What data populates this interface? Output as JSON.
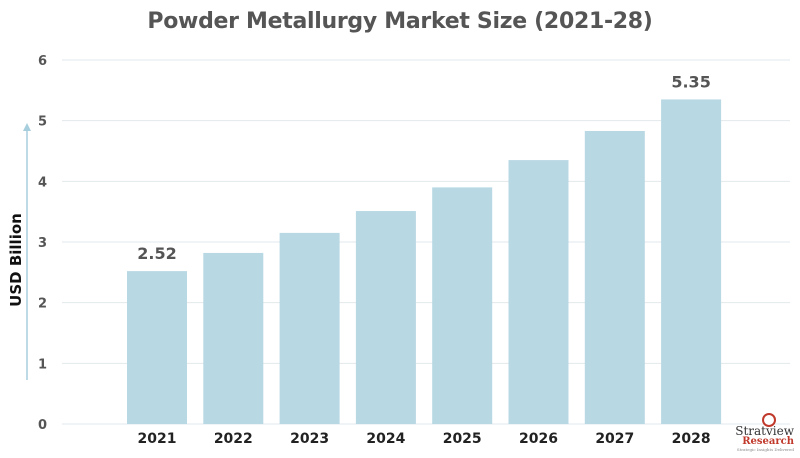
{
  "chart_data": {
    "type": "bar",
    "title": "Powder Metallurgy Market Size (2021-28)",
    "xlabel": "",
    "ylabel": "USD Billion",
    "categories": [
      "2021",
      "2022",
      "2023",
      "2024",
      "2025",
      "2026",
      "2027",
      "2028"
    ],
    "values": [
      2.52,
      2.82,
      3.15,
      3.51,
      3.9,
      4.35,
      4.83,
      5.35
    ],
    "data_labels": [
      "2.52",
      "",
      "",
      "",
      "",
      "",
      "",
      "5.35"
    ],
    "ylim": [
      0,
      6
    ],
    "yticks": [
      0,
      1,
      2,
      3,
      4,
      5,
      6
    ],
    "grid": true,
    "colors": {
      "bar": "#b8d8e4",
      "grid": "#e2e8ec",
      "axis_arrow": "#a7cedd"
    }
  },
  "logo": {
    "brand": "Stratview",
    "sub": "Research",
    "tagline": "Strategic Insights Delivered"
  }
}
